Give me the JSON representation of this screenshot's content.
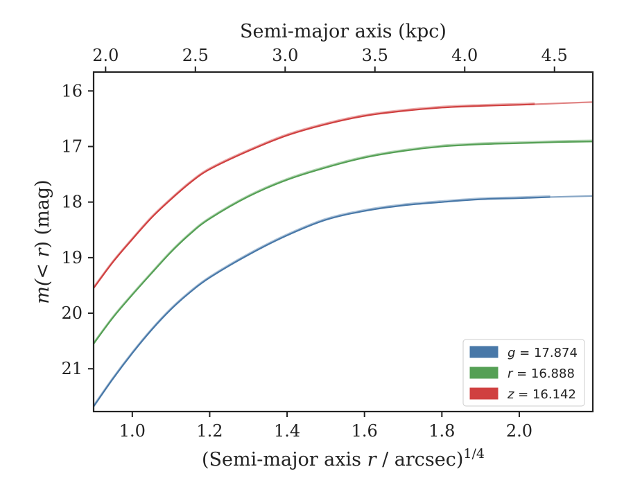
{
  "chart_data": {
    "type": "line",
    "xlabel_bottom": {
      "prefix": "(Semi-major axis ",
      "var": "r",
      "suffix": " / arcsec)",
      "sup": "1/4"
    },
    "xlabel_top": "Semi-major axis (kpc)",
    "ylabel": {
      "prefix": "m(< ",
      "var": "r",
      "suffix": ") (mag)"
    },
    "xlim": [
      0.9,
      2.19
    ],
    "ylim": [
      21.77,
      15.66
    ],
    "y_inverted": true,
    "x_ticks": [
      1.0,
      1.2,
      1.4,
      1.6,
      1.8,
      2.0
    ],
    "x_tick_labels": [
      "1.0",
      "1.2",
      "1.4",
      "1.6",
      "1.8",
      "2.0"
    ],
    "y_ticks": [
      16,
      17,
      18,
      19,
      20,
      21
    ],
    "y_tick_labels": [
      "16",
      "17",
      "18",
      "19",
      "20",
      "21"
    ],
    "top_ticks_kpc": [
      2.0,
      2.5,
      3.0,
      3.5,
      4.0,
      4.5
    ],
    "top_tick_labels": [
      "2.0",
      "2.5",
      "3.0",
      "3.5",
      "4.0",
      "4.5"
    ],
    "top_tick_positions_bottom_units": [
      0.931,
      1.163,
      1.395,
      1.627,
      1.859,
      2.091
    ],
    "grid": false,
    "legend_placement": "lower-right",
    "series": [
      {
        "name": "g = 17.874",
        "band": "g",
        "label_value": "= 17.874",
        "color": "#4878a8",
        "x": [
          0.9,
          0.95,
          1.0,
          1.05,
          1.1,
          1.15,
          1.2,
          1.3,
          1.4,
          1.5,
          1.6,
          1.7,
          1.8,
          1.9,
          2.0,
          2.08
        ],
        "y": [
          21.68,
          21.18,
          20.72,
          20.3,
          19.93,
          19.62,
          19.36,
          18.95,
          18.6,
          18.32,
          18.16,
          18.06,
          18.0,
          17.95,
          17.93,
          17.91
        ],
        "extension": {
          "x": [
            2.08,
            2.19
          ],
          "y": [
            17.91,
            17.89
          ]
        }
      },
      {
        "name": "r = 16.888",
        "band": "r",
        "label_value": "= 16.888",
        "color": "#55a055",
        "x": [
          0.9,
          0.95,
          1.0,
          1.05,
          1.1,
          1.15,
          1.2,
          1.3,
          1.4,
          1.5,
          1.6,
          1.7,
          1.8,
          1.9,
          2.0,
          2.1,
          2.19
        ],
        "y": [
          20.55,
          20.08,
          19.67,
          19.28,
          18.9,
          18.57,
          18.3,
          17.9,
          17.6,
          17.38,
          17.2,
          17.08,
          17.0,
          16.96,
          16.94,
          16.92,
          16.91
        ],
        "extension": null
      },
      {
        "name": "z = 16.142",
        "band": "z",
        "label_value": "= 16.142",
        "color": "#d04040",
        "x": [
          0.9,
          0.95,
          1.0,
          1.05,
          1.1,
          1.15,
          1.2,
          1.3,
          1.4,
          1.5,
          1.6,
          1.7,
          1.8,
          1.9,
          2.0,
          2.04
        ],
        "y": [
          19.55,
          19.08,
          18.67,
          18.28,
          17.95,
          17.65,
          17.41,
          17.08,
          16.8,
          16.6,
          16.45,
          16.36,
          16.3,
          16.27,
          16.25,
          16.24
        ],
        "extension": {
          "x": [
            2.04,
            2.19
          ],
          "y": [
            16.24,
            16.2
          ]
        }
      }
    ]
  }
}
